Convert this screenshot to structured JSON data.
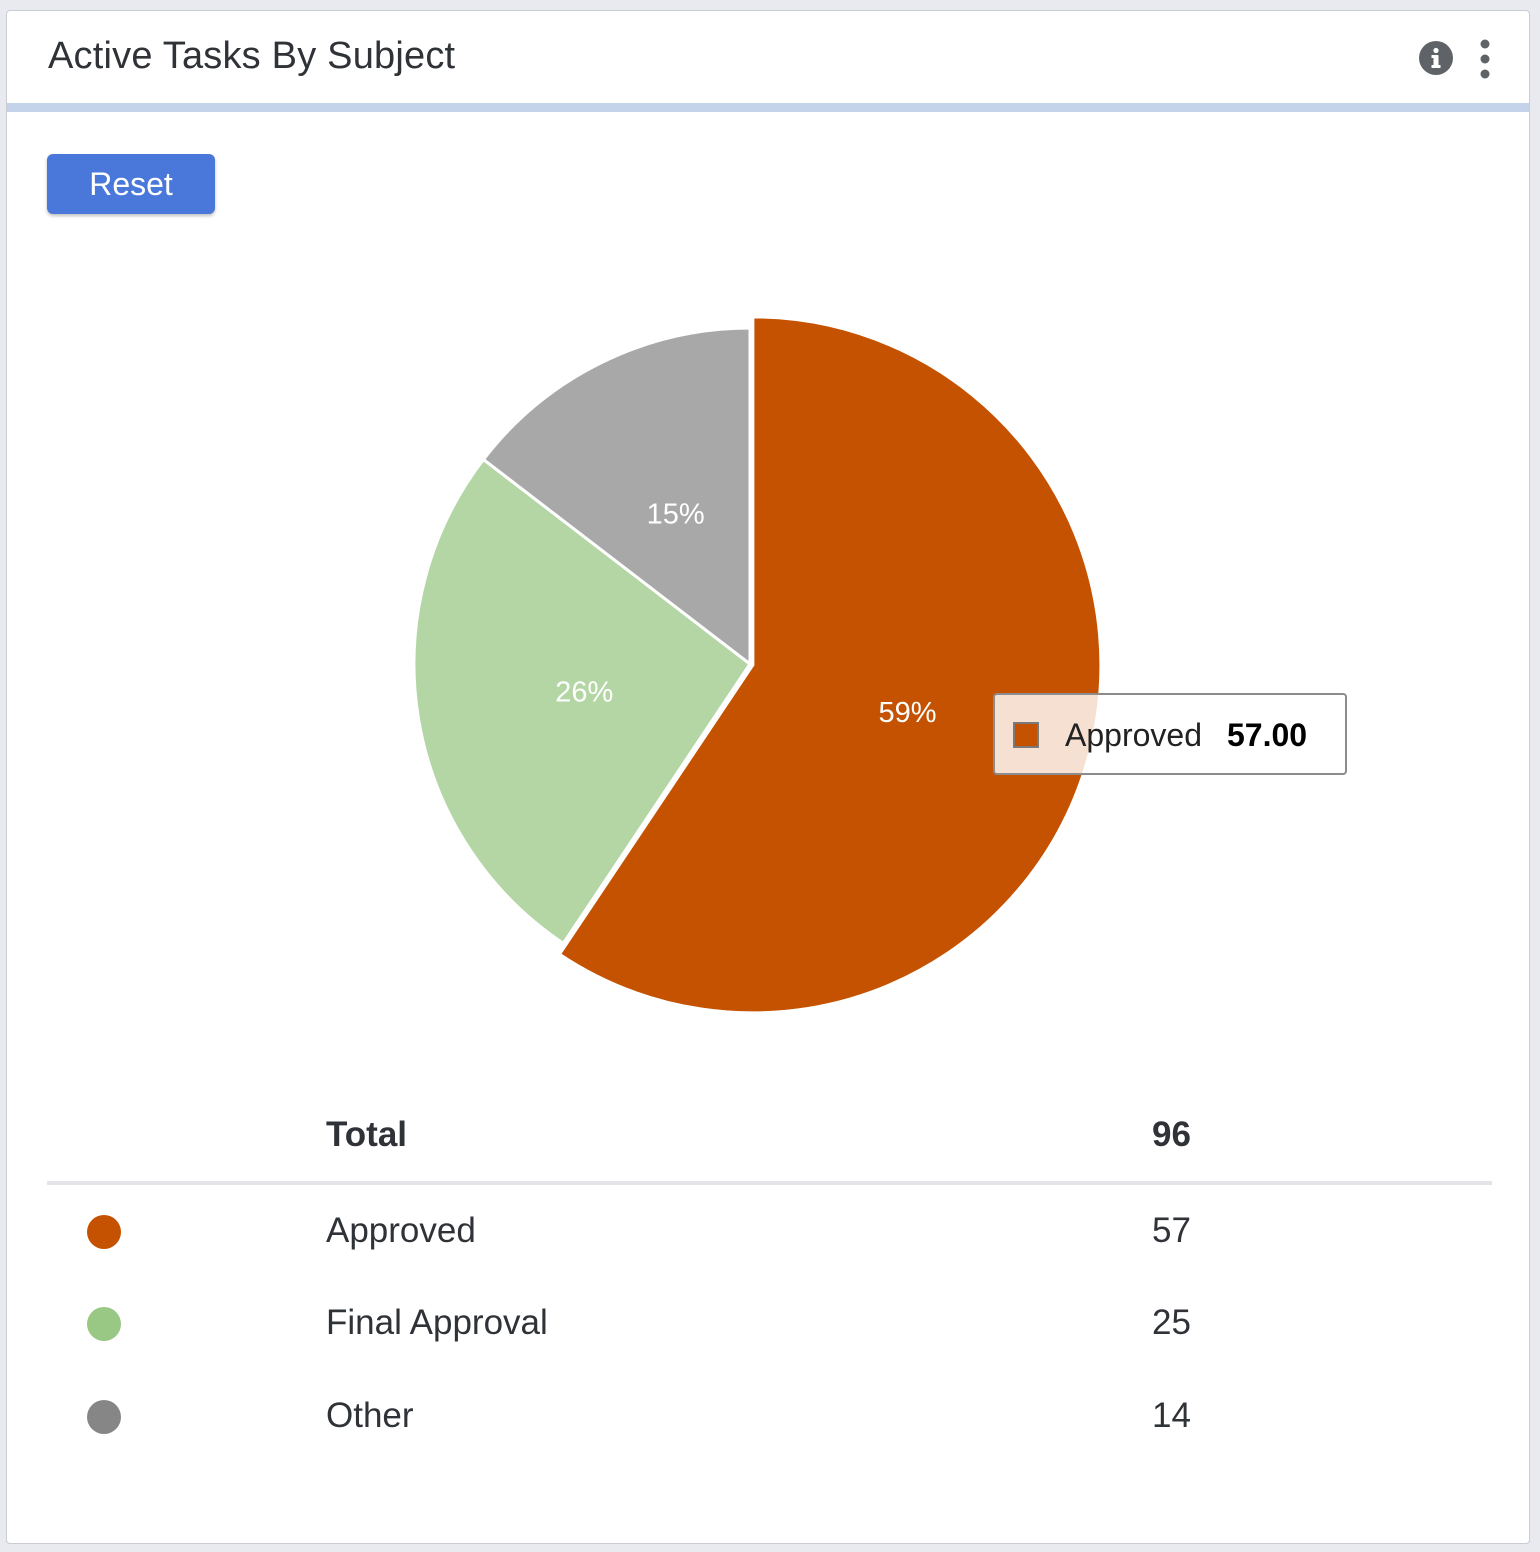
{
  "header": {
    "title": "Active Tasks By Subject",
    "info_icon": "info-circle-icon",
    "more_icon": "more-vertical-icon"
  },
  "toolbar": {
    "reset_label": "Reset"
  },
  "colors": {
    "approved": "#c55200",
    "final_approval": "#b3d6a4",
    "other": "#a8a8a8",
    "legend_final_approval": "#99c784",
    "legend_other": "#868686",
    "reset_button": "#4a78da"
  },
  "chart_data": {
    "type": "pie",
    "categories": [
      "Approved",
      "Final Approval",
      "Other"
    ],
    "values": [
      57,
      25,
      14
    ],
    "percent_labels": [
      "59%",
      "26%",
      "15%"
    ],
    "highlighted": "Approved"
  },
  "tooltip": {
    "label": "Approved",
    "value": "57.00"
  },
  "legend": {
    "total_label": "Total",
    "total_value": "96",
    "items": [
      {
        "label": "Approved",
        "value": "57"
      },
      {
        "label": "Final Approval",
        "value": "25"
      },
      {
        "label": "Other",
        "value": "14"
      }
    ]
  }
}
